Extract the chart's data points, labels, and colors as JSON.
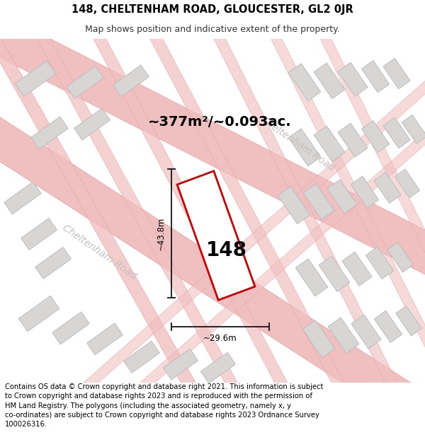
{
  "title_line1": "148, CHELTENHAM ROAD, GLOUCESTER, GL2 0JR",
  "title_line2": "Map shows position and indicative extent of the property.",
  "area_text": "~377m²/~0.093ac.",
  "label_148": "148",
  "dim_height": "~43.8m",
  "dim_width": "~29.6m",
  "road_label_left": "Cheltenham Road",
  "road_label_right": "Cheltenham Road",
  "footer_text": "Contains OS data © Crown copyright and database right 2021. This information is subject to Crown copyright and database rights 2023 and is reproduced with the permission of HM Land Registry. The polygons (including the associated geometry, namely x, y co-ordinates) are subject to Crown copyright and database rights 2023 Ordnance Survey 100026316.",
  "map_bg": "#f2f0f0",
  "plot_color": "#cc0000",
  "road_stripe_color": "#f0c0c0",
  "road_edge_color": "#e8a0a0",
  "building_face_color": "#d8d5d5",
  "building_edge_color": "#c0bcbc",
  "dim_line_color": "#222222",
  "road_text_color": "#c8c0c0",
  "title_font_size": 10.5,
  "subtitle_font_size": 9,
  "footer_font_size": 7.2,
  "area_font_size": 14,
  "label_font_size": 20,
  "dim_font_size": 8.5,
  "road_font_size": 10
}
